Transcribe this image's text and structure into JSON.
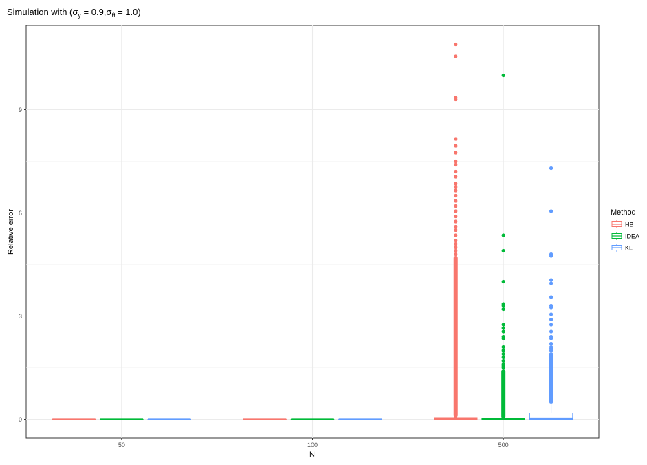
{
  "chart_data": {
    "type": "boxplot",
    "title": {
      "prefix": "Simulation with (",
      "s1": "σ",
      "s1_sub": "y",
      "s1_val": " = 0.9,",
      "s2": "σ",
      "s2_sub": "θ",
      "s2_val": " = 1.0)"
    },
    "xlabel": "N",
    "ylabel": "Relative error",
    "categories": [
      "50",
      "100",
      "500"
    ],
    "y_ticks": [
      0,
      3,
      6,
      9
    ],
    "y_tick_labels": [
      "0",
      "3",
      "6",
      "9"
    ],
    "ylim": [
      -0.55,
      11.45
    ],
    "grid": true,
    "legend": {
      "title": "Method",
      "placement": "right",
      "entries": [
        "HB",
        "IDEA",
        "KL"
      ]
    },
    "series": [
      {
        "name": "HB",
        "color": "#F8766D",
        "boxes": [
          {
            "category": "50",
            "min": 0,
            "q1": 0,
            "median": 0,
            "q3": 0,
            "max": 0,
            "outliers": []
          },
          {
            "category": "100",
            "min": 0,
            "q1": 0,
            "median": 0,
            "q3": 0,
            "max": 0,
            "outliers": []
          },
          {
            "category": "500",
            "min": 0,
            "q1": 0.0,
            "median": 0.01,
            "q3": 0.05,
            "max": 0.05,
            "outliers": [
              10.9,
              10.55,
              9.35,
              9.3,
              8.15,
              7.95,
              7.75,
              7.5,
              7.4,
              7.2,
              7.05,
              6.85,
              6.75,
              6.65,
              6.5,
              6.35,
              6.2,
              6.05,
              5.9,
              5.75,
              5.6,
              5.5,
              5.35,
              5.2,
              5.1,
              5.0,
              4.9,
              4.8
            ],
            "dense_outlier_range": [
              0.05,
              4.75
            ]
          }
        ]
      },
      {
        "name": "IDEA",
        "color": "#00BA38",
        "boxes": [
          {
            "category": "50",
            "min": 0,
            "q1": 0,
            "median": 0,
            "q3": 0,
            "max": 0,
            "outliers": []
          },
          {
            "category": "100",
            "min": 0,
            "q1": 0,
            "median": 0,
            "q3": 0,
            "max": 0,
            "outliers": []
          },
          {
            "category": "500",
            "min": 0,
            "q1": 0.0,
            "median": 0.0,
            "q3": 0.02,
            "max": 0.02,
            "outliers": [
              10.0,
              5.35,
              4.9,
              4.0,
              3.35,
              3.3,
              3.2,
              2.75,
              2.65,
              2.55,
              2.4,
              2.35,
              2.1,
              2.0,
              1.9,
              1.8,
              1.7,
              1.6,
              1.55,
              1.5
            ],
            "dense_outlier_range": [
              0.02,
              1.45
            ]
          }
        ]
      },
      {
        "name": "KL",
        "color": "#619CFF",
        "boxes": [
          {
            "category": "50",
            "min": 0,
            "q1": 0,
            "median": 0,
            "q3": 0,
            "max": 0,
            "outliers": []
          },
          {
            "category": "100",
            "min": 0,
            "q1": 0,
            "median": 0,
            "q3": 0,
            "max": 0,
            "outliers": []
          },
          {
            "category": "500",
            "min": 0,
            "q1": 0.0,
            "median": 0.03,
            "q3": 0.18,
            "max": 0.45,
            "outliers": [
              7.3,
              6.05,
              4.8,
              4.75,
              4.05,
              3.95,
              3.55,
              3.3,
              3.25,
              3.05,
              2.9,
              2.75,
              2.55,
              2.4,
              2.35,
              2.2,
              2.1,
              2.05,
              2.0
            ],
            "dense_outlier_range": [
              0.45,
              1.95
            ]
          }
        ]
      }
    ]
  }
}
